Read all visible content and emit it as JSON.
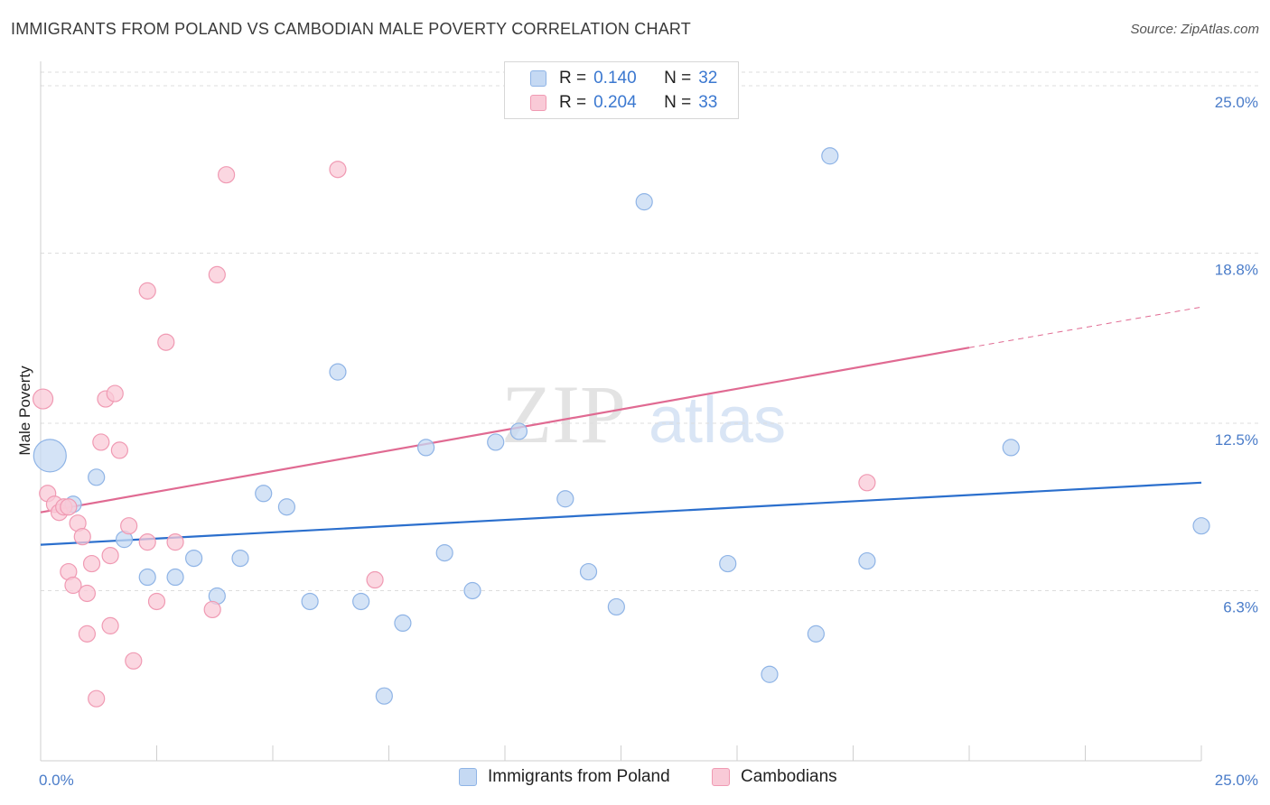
{
  "header": {
    "title": "IMMIGRANTS FROM POLAND VS CAMBODIAN MALE POVERTY CORRELATION CHART",
    "source": "Source: ZipAtlas.com"
  },
  "watermark": {
    "zip": "ZIP",
    "atlas": "atlas"
  },
  "legend": {
    "rows": [
      {
        "r_label": "R =",
        "r_value": "0.140",
        "n_label": "N =",
        "n_value": "32"
      },
      {
        "r_label": "R =",
        "r_value": "0.204",
        "n_label": "N =",
        "n_value": "33"
      }
    ]
  },
  "bottom_legend": {
    "series1": "Immigrants from Poland",
    "series2": "Cambodians"
  },
  "colors": {
    "blue_fill": "#c5d9f3",
    "blue_stroke": "#8fb4e6",
    "blue_line": "#2b6fcd",
    "pink_fill": "#f9cad7",
    "pink_stroke": "#f09ab3",
    "pink_line": "#e06a92",
    "tick_text": "#4a7cc9",
    "grid": "#dddddd"
  },
  "chart_data": {
    "type": "scatter",
    "title": "IMMIGRANTS FROM POLAND VS CAMBODIAN MALE POVERTY CORRELATION CHART",
    "xlabel": "",
    "ylabel": "Male Poverty",
    "xlim": [
      0,
      25
    ],
    "ylim": [
      0,
      25.5
    ],
    "x_tick_labels": [
      "0.0%",
      "25.0%"
    ],
    "y_ticks": [
      6.3,
      12.5,
      18.8,
      25.0
    ],
    "y_tick_labels": [
      "6.3%",
      "12.5%",
      "18.8%",
      "25.0%"
    ],
    "grid": "horizontal dashed",
    "legend_position": "top-center",
    "series": [
      {
        "name": "Immigrants from Poland",
        "color": "#c5d9f3",
        "points": [
          [
            0.2,
            11.3,
            18
          ],
          [
            0.7,
            9.5,
            9
          ],
          [
            1.2,
            10.5,
            9
          ],
          [
            1.8,
            8.2,
            9
          ],
          [
            2.3,
            6.8,
            9
          ],
          [
            2.9,
            6.8,
            9
          ],
          [
            3.3,
            7.5,
            9
          ],
          [
            3.8,
            6.1,
            9
          ],
          [
            4.3,
            7.5,
            9
          ],
          [
            4.8,
            9.9,
            9
          ],
          [
            5.3,
            9.4,
            9
          ],
          [
            5.8,
            5.9,
            9
          ],
          [
            6.4,
            14.4,
            9
          ],
          [
            6.9,
            5.9,
            9
          ],
          [
            7.4,
            2.4,
            9
          ],
          [
            7.8,
            5.1,
            9
          ],
          [
            8.3,
            11.6,
            9
          ],
          [
            8.7,
            7.7,
            9
          ],
          [
            9.3,
            6.3,
            9
          ],
          [
            9.8,
            11.8,
            9
          ],
          [
            10.3,
            12.2,
            9
          ],
          [
            11.3,
            9.7,
            9
          ],
          [
            11.8,
            7.0,
            9
          ],
          [
            12.4,
            5.7,
            9
          ],
          [
            13.0,
            20.7,
            9
          ],
          [
            14.8,
            7.3,
            9
          ],
          [
            15.7,
            3.2,
            9
          ],
          [
            16.7,
            4.7,
            9
          ],
          [
            17.0,
            22.4,
            9
          ],
          [
            17.8,
            7.4,
            9
          ],
          [
            20.9,
            11.6,
            9
          ],
          [
            25.0,
            8.7,
            9
          ]
        ]
      },
      {
        "name": "Cambodians",
        "color": "#f9cad7",
        "points": [
          [
            0.05,
            13.4,
            11
          ],
          [
            0.15,
            9.9,
            9
          ],
          [
            0.3,
            9.5,
            9
          ],
          [
            0.4,
            9.2,
            9
          ],
          [
            0.5,
            9.4,
            9
          ],
          [
            0.6,
            9.4,
            9
          ],
          [
            0.6,
            7.0,
            9
          ],
          [
            0.7,
            6.5,
            9
          ],
          [
            0.8,
            8.8,
            9
          ],
          [
            0.9,
            8.3,
            9
          ],
          [
            1.0,
            6.2,
            9
          ],
          [
            1.0,
            4.7,
            9
          ],
          [
            1.1,
            7.3,
            9
          ],
          [
            1.2,
            2.3,
            9
          ],
          [
            1.3,
            11.8,
            9
          ],
          [
            1.4,
            13.4,
            9
          ],
          [
            1.5,
            5.0,
            9
          ],
          [
            1.5,
            7.6,
            9
          ],
          [
            1.6,
            13.6,
            9
          ],
          [
            1.7,
            11.5,
            9
          ],
          [
            1.9,
            8.7,
            9
          ],
          [
            2.0,
            3.7,
            9
          ],
          [
            2.3,
            17.4,
            9
          ],
          [
            2.3,
            8.1,
            9
          ],
          [
            2.5,
            5.9,
            9
          ],
          [
            2.7,
            15.5,
            9
          ],
          [
            2.9,
            8.1,
            9
          ],
          [
            3.7,
            5.6,
            9
          ],
          [
            3.8,
            18.0,
            9
          ],
          [
            4.0,
            21.7,
            9
          ],
          [
            6.4,
            21.9,
            9
          ],
          [
            7.2,
            6.7,
            9
          ],
          [
            17.8,
            10.3,
            9
          ]
        ]
      }
    ],
    "trendlines": [
      {
        "series": "Immigrants from Poland",
        "x1": 0,
        "y1": 8.0,
        "x2": 25,
        "y2": 10.3,
        "style": "solid"
      },
      {
        "series": "Cambodians",
        "x1": 0,
        "y1": 9.2,
        "x2": 20,
        "y2": 15.3,
        "style": "solid"
      },
      {
        "series": "Cambodians",
        "x1": 20,
        "y1": 15.3,
        "x2": 25,
        "y2": 16.8,
        "style": "dashed"
      }
    ]
  }
}
